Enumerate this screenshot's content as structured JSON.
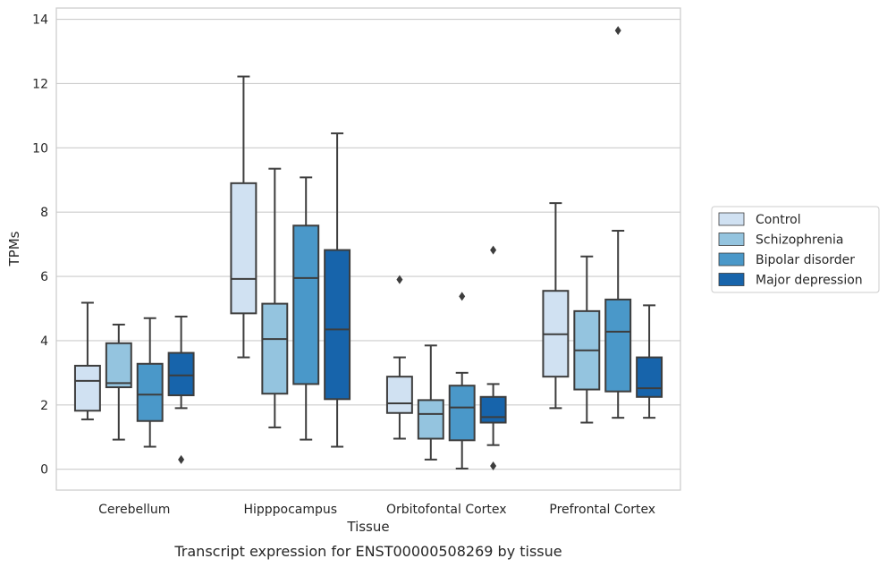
{
  "chart_data": {
    "type": "box",
    "xlabel": "Tissue",
    "ylabel": "TPMs",
    "caption": "Transcript expression for ENST00000508269 by tissue",
    "ylim": [
      -0.65,
      14.35
    ],
    "yticks": [
      0,
      2,
      4,
      6,
      8,
      10,
      12,
      14
    ],
    "grid": "horizontal",
    "legend_position": "right",
    "categories": [
      "Cerebellum",
      "Hipppocampus",
      "Orbitofontal Cortex",
      "Prefrontal Cortex"
    ],
    "series": [
      {
        "name": "Control",
        "color": "#d0e1f2",
        "boxes": [
          {
            "min": 1.55,
            "q1": 1.82,
            "median": 2.75,
            "q3": 3.22,
            "max": 5.18,
            "outliers": []
          },
          {
            "min": 3.48,
            "q1": 4.85,
            "median": 5.92,
            "q3": 8.9,
            "max": 12.22,
            "outliers": []
          },
          {
            "min": 0.95,
            "q1": 1.75,
            "median": 2.05,
            "q3": 2.88,
            "max": 3.48,
            "outliers": [
              5.9
            ]
          },
          {
            "min": 1.9,
            "q1": 2.88,
            "median": 4.2,
            "q3": 5.55,
            "max": 8.28,
            "outliers": []
          }
        ]
      },
      {
        "name": "Schizophrenia",
        "color": "#94c4df",
        "boxes": [
          {
            "min": 0.92,
            "q1": 2.55,
            "median": 2.68,
            "q3": 3.92,
            "max": 4.5,
            "outliers": []
          },
          {
            "min": 1.3,
            "q1": 2.35,
            "median": 4.05,
            "q3": 5.15,
            "max": 9.35,
            "outliers": []
          },
          {
            "min": 0.3,
            "q1": 0.95,
            "median": 1.72,
            "q3": 2.15,
            "max": 3.85,
            "outliers": []
          },
          {
            "min": 1.45,
            "q1": 2.48,
            "median": 3.7,
            "q3": 4.92,
            "max": 6.62,
            "outliers": []
          }
        ]
      },
      {
        "name": "Bipolar disorder",
        "color": "#4a98c9",
        "boxes": [
          {
            "min": 0.7,
            "q1": 1.5,
            "median": 2.32,
            "q3": 3.28,
            "max": 4.7,
            "outliers": []
          },
          {
            "min": 0.92,
            "q1": 2.65,
            "median": 5.95,
            "q3": 7.58,
            "max": 9.08,
            "outliers": []
          },
          {
            "min": 0.02,
            "q1": 0.9,
            "median": 1.92,
            "q3": 2.6,
            "max": 3.0,
            "outliers": [
              5.38
            ]
          },
          {
            "min": 1.6,
            "q1": 2.42,
            "median": 4.28,
            "q3": 5.28,
            "max": 7.42,
            "outliers": [
              13.65
            ]
          }
        ]
      },
      {
        "name": "Major depression",
        "color": "#1764ab",
        "boxes": [
          {
            "min": 1.9,
            "q1": 2.3,
            "median": 2.92,
            "q3": 3.62,
            "max": 4.75,
            "outliers": [
              0.3
            ]
          },
          {
            "min": 0.7,
            "q1": 2.18,
            "median": 4.35,
            "q3": 6.82,
            "max": 10.45,
            "outliers": []
          },
          {
            "min": 0.75,
            "q1": 1.45,
            "median": 1.62,
            "q3": 2.25,
            "max": 2.65,
            "outliers": [
              0.1,
              6.82
            ]
          },
          {
            "min": 1.6,
            "q1": 2.25,
            "median": 2.52,
            "q3": 3.48,
            "max": 5.1,
            "outliers": []
          }
        ]
      }
    ]
  }
}
